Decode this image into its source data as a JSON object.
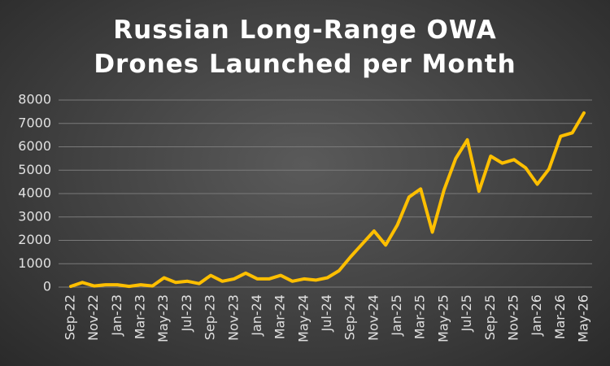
{
  "chart_data": {
    "type": "line",
    "title": "Russian Long-Range OWA Drones Launched per Month",
    "categories": [
      "Sep-22",
      null,
      "Nov-22",
      null,
      "Jan-23",
      null,
      "Mar-23",
      null,
      "May-23",
      null,
      "Jul-23",
      null,
      "Sep-23",
      null,
      "Nov-23",
      null,
      "Jan-24",
      null,
      "Mar-24",
      null,
      "May-24",
      null,
      "Jul-24",
      null,
      "Sep-24",
      null,
      "Nov-24",
      null,
      "Jan-25",
      null,
      "Mar-25",
      null,
      "May-25",
      null,
      "Jul-25",
      null,
      "Sep-25",
      null,
      "Nov-25",
      null,
      "Jan-26",
      null,
      "Mar-26",
      null,
      "May-26"
    ],
    "values": [
      30,
      200,
      50,
      100,
      100,
      30,
      100,
      50,
      400,
      200,
      250,
      150,
      500,
      250,
      350,
      600,
      350,
      350,
      500,
      250,
      350,
      300,
      400,
      700,
      1300,
      1850,
      2400,
      1800,
      2650,
      3850,
      4200,
      2350,
      4150,
      5500,
      6300,
      4100,
      5600,
      5300,
      5450,
      5100,
      4400,
      5050,
      6450,
      6600,
      7450
    ],
    "color": "#ffbf00",
    "ylim": [
      0,
      8000
    ],
    "yticks": [
      0,
      1000,
      2000,
      3000,
      4000,
      5000,
      6000,
      7000,
      8000
    ],
    "grid": true
  }
}
